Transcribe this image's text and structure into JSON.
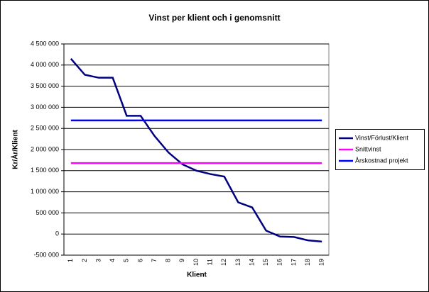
{
  "chart_data": {
    "type": "line",
    "title": "Vinst per klient och i genomsnitt",
    "x_label": "Klient",
    "y_label": "Kr/År/Klient",
    "categories": [
      "1",
      "2",
      "3",
      "4",
      "5",
      "6",
      "7",
      "8",
      "9",
      "10",
      "11",
      "12",
      "13",
      "14",
      "15",
      "16",
      "17",
      "18",
      "19"
    ],
    "series": [
      {
        "name": "Vinst/Förlust/Klient",
        "color": "#000080",
        "values": [
          4150000,
          3770000,
          3700000,
          3700000,
          2800000,
          2800000,
          2320000,
          1930000,
          1650000,
          1500000,
          1420000,
          1360000,
          750000,
          630000,
          80000,
          -60000,
          -70000,
          -150000,
          -180000
        ]
      },
      {
        "name": "Snittvinst",
        "color": "#ff00ff",
        "values": [
          1680000,
          1680000,
          1680000,
          1680000,
          1680000,
          1680000,
          1680000,
          1680000,
          1680000,
          1680000,
          1680000,
          1680000,
          1680000,
          1680000,
          1680000,
          1680000,
          1680000,
          1680000,
          1680000
        ]
      },
      {
        "name": "Årskostnad projekt",
        "color": "#0000ff",
        "values": [
          2690000,
          2690000,
          2690000,
          2690000,
          2690000,
          2690000,
          2690000,
          2690000,
          2690000,
          2690000,
          2690000,
          2690000,
          2690000,
          2690000,
          2690000,
          2690000,
          2690000,
          2690000,
          2690000
        ]
      }
    ],
    "ylim": [
      -500000,
      4500000
    ],
    "yticks": [
      {
        "value": -500000,
        "label": "-500 000"
      },
      0,
      {
        "value": 500000,
        "label": "500 000"
      },
      {
        "value": 1000000,
        "label": "1 000 000"
      },
      {
        "value": 1500000,
        "label": "1 500 000"
      },
      {
        "value": 2000000,
        "label": "2 000 000"
      },
      {
        "value": 2500000,
        "label": "2 500 000"
      },
      {
        "value": 3000000,
        "label": "3 000 000"
      },
      {
        "value": 3500000,
        "label": "3 500 000"
      },
      {
        "value": 4000000,
        "label": "4 000 000"
      },
      {
        "value": 4500000,
        "label": "4 500 000"
      }
    ],
    "grid": true,
    "legend": "right"
  }
}
